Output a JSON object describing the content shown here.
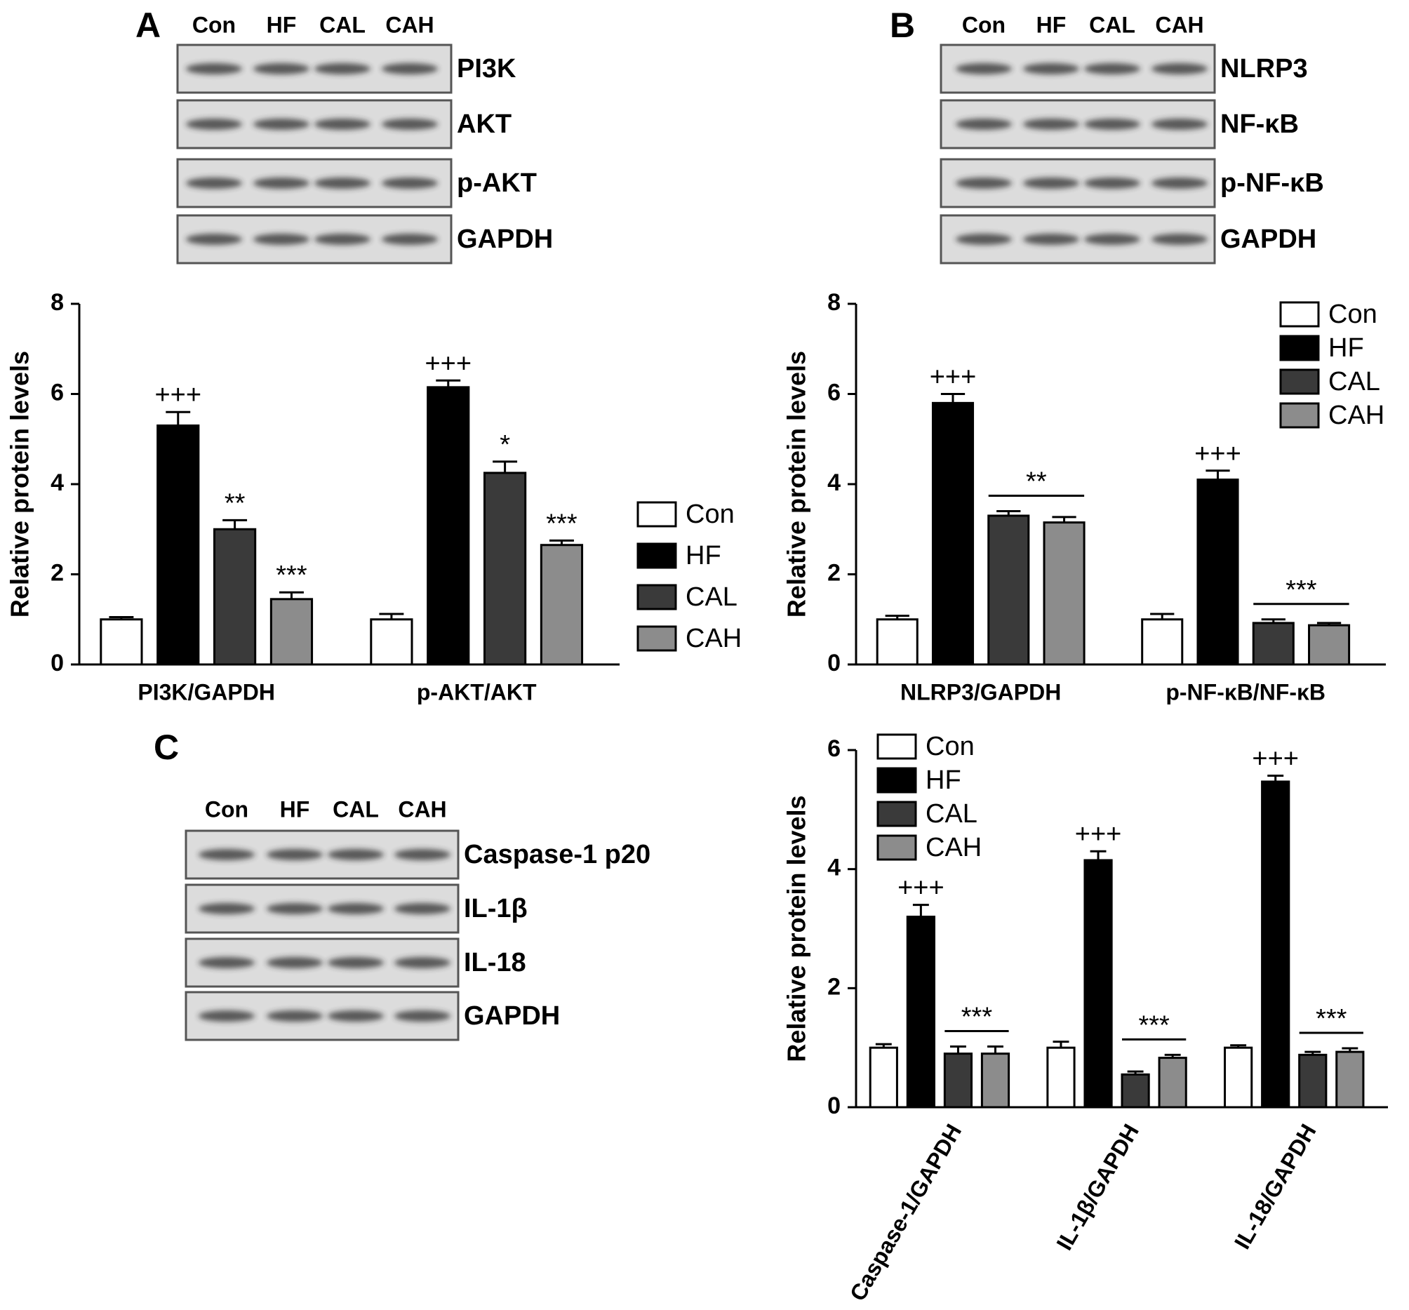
{
  "panels": [
    {
      "letter": "A",
      "lanes": [
        "Con",
        "HF",
        "CAL",
        "CAH"
      ],
      "bands": [
        "PI3K",
        "AKT",
        "p-AKT",
        "GAPDH"
      ]
    },
    {
      "letter": "B",
      "lanes": [
        "Con",
        "HF",
        "CAL",
        "CAH"
      ],
      "bands": [
        "NLRP3",
        "NF-κB",
        "p-NF-κB",
        "GAPDH"
      ]
    },
    {
      "letter": "C",
      "lanes": [
        "Con",
        "HF",
        "CAL",
        "CAH"
      ],
      "bands": [
        "Caspase-1 p20",
        "IL-1β",
        "IL-18",
        "GAPDH"
      ]
    }
  ],
  "chart_data": [
    {
      "type": "bar",
      "ylabel": "Relative protein levels",
      "categories": [
        "PI3K/GAPDH",
        "p-AKT/AKT"
      ],
      "series": [
        {
          "name": "Con",
          "color": "#ffffff",
          "values": [
            1.0,
            1.0
          ],
          "errors": [
            0.05,
            0.12
          ],
          "markers": [
            null,
            null
          ]
        },
        {
          "name": "HF",
          "color": "#000000",
          "values": [
            5.3,
            6.15
          ],
          "errors": [
            0.3,
            0.15
          ],
          "markers": [
            "+++",
            "+++"
          ]
        },
        {
          "name": "CAL",
          "color": "#3a3a3a",
          "values": [
            3.0,
            4.25
          ],
          "errors": [
            0.2,
            0.25
          ],
          "markers": [
            "**",
            "*"
          ]
        },
        {
          "name": "CAH",
          "color": "#8c8c8c",
          "values": [
            1.45,
            2.65
          ],
          "errors": [
            0.15,
            0.1
          ],
          "markers": [
            "***",
            "***"
          ]
        }
      ],
      "ylim": [
        0,
        8
      ],
      "yticks": [
        0,
        2,
        4,
        6,
        8
      ],
      "legend": "right"
    },
    {
      "type": "bar",
      "ylabel": "Relative protein levels",
      "categories": [
        "NLRP3/GAPDH",
        "p-NF-κB/NF-κB"
      ],
      "series": [
        {
          "name": "Con",
          "color": "#ffffff",
          "values": [
            1.0,
            1.0
          ],
          "errors": [
            0.08,
            0.12
          ],
          "markers": [
            null,
            null
          ]
        },
        {
          "name": "HF",
          "color": "#000000",
          "values": [
            5.8,
            4.1
          ],
          "errors": [
            0.2,
            0.2
          ],
          "markers": [
            "+++",
            "+++"
          ]
        },
        {
          "name": "CAL",
          "color": "#3a3a3a",
          "values": [
            3.3,
            0.92
          ],
          "errors": [
            0.1,
            0.08
          ],
          "markers": [
            null,
            null
          ]
        },
        {
          "name": "CAH",
          "color": "#8c8c8c",
          "values": [
            3.15,
            0.87
          ],
          "errors": [
            0.12,
            0.05
          ],
          "markers": [
            null,
            null
          ]
        }
      ],
      "bracket_labels": [
        "**",
        "***"
      ],
      "ylim": [
        0,
        8
      ],
      "yticks": [
        0,
        2,
        4,
        6,
        8
      ],
      "legend": "upper right"
    },
    {
      "type": "bar",
      "ylabel": "Relative protein levels",
      "categories": [
        "Caspase-1/GAPDH",
        "IL-1β/GAPDH",
        "IL-18/GAPDH"
      ],
      "series": [
        {
          "name": "Con",
          "color": "#ffffff",
          "values": [
            1.0,
            1.0,
            1.0
          ],
          "errors": [
            0.06,
            0.1,
            0.04
          ],
          "markers": [
            null,
            null,
            null
          ]
        },
        {
          "name": "HF",
          "color": "#000000",
          "values": [
            3.2,
            4.15,
            5.47
          ],
          "errors": [
            0.2,
            0.15,
            0.1
          ],
          "markers": [
            "+++",
            "+++",
            "+++"
          ]
        },
        {
          "name": "CAL",
          "color": "#3a3a3a",
          "values": [
            0.9,
            0.55,
            0.88
          ],
          "errors": [
            0.12,
            0.05,
            0.05
          ],
          "markers": [
            null,
            null,
            null
          ]
        },
        {
          "name": "CAH",
          "color": "#8c8c8c",
          "values": [
            0.9,
            0.83,
            0.93
          ],
          "errors": [
            0.12,
            0.05,
            0.06
          ],
          "markers": [
            null,
            null,
            null
          ]
        }
      ],
      "bracket_labels": [
        "***",
        "***",
        "***"
      ],
      "xlabel_rotation": -60,
      "ylim": [
        0,
        6
      ],
      "yticks": [
        0,
        2,
        4,
        6
      ],
      "legend": "upper left"
    }
  ]
}
